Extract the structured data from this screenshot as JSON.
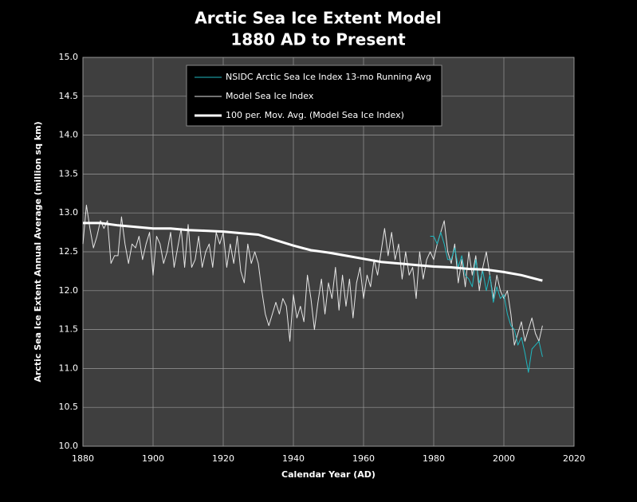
{
  "chart_data": {
    "type": "line",
    "title": "Arctic Sea Ice Extent Model",
    "subtitle": "1880 AD to Present",
    "xlabel": "Calendar Year (AD)",
    "ylabel": "Arctic Sea Ice Extent Annual Average (million sq km)",
    "xlim": [
      1880,
      2020
    ],
    "xticks": [
      1880,
      1900,
      1920,
      1940,
      1960,
      1980,
      2000,
      2020
    ],
    "ylim": [
      10,
      15
    ],
    "yticks": [
      {
        "value": 10,
        "label": "10.0"
      },
      10.5,
      {
        "value": 11,
        "label": "11.0"
      },
      11.5,
      {
        "value": 12,
        "label": "12.0"
      },
      12.5,
      {
        "value": 13,
        "label": "13.0"
      },
      13.5,
      {
        "value": 14,
        "label": "14.0"
      },
      14.5,
      {
        "value": 15,
        "label": "15.0"
      }
    ],
    "grid": true,
    "legend": "top",
    "series": [
      {
        "name": "NSIDC Arctic Sea Ice Index 13-mo Running Avg",
        "color": "#1fb8c0",
        "width": 1,
        "x": [
          1979,
          1980,
          1981,
          1982,
          1983,
          1984,
          1985,
          1986,
          1987,
          1988,
          1989,
          1990,
          1991,
          1992,
          1993,
          1994,
          1995,
          1996,
          1997,
          1998,
          1999,
          2000,
          2001,
          2002,
          2003,
          2004,
          2005,
          2006,
          2007,
          2008,
          2009,
          2010,
          2011
        ],
        "values": [
          12.7,
          12.7,
          12.6,
          12.75,
          12.6,
          12.4,
          12.4,
          12.55,
          12.3,
          12.45,
          12.2,
          12.15,
          12.05,
          12.4,
          12.1,
          12.25,
          12.0,
          12.2,
          11.85,
          12.05,
          11.9,
          11.95,
          11.7,
          11.55,
          11.5,
          11.3,
          11.4,
          11.2,
          10.95,
          11.25,
          11.3,
          11.35,
          11.15
        ]
      },
      {
        "name": "Model Sea Ice Index",
        "color": "#e6e6e6",
        "width": 1,
        "x": [
          1880,
          1881,
          1882,
          1883,
          1884,
          1885,
          1886,
          1887,
          1888,
          1889,
          1890,
          1891,
          1892,
          1893,
          1894,
          1895,
          1896,
          1897,
          1898,
          1899,
          1900,
          1901,
          1902,
          1903,
          1904,
          1905,
          1906,
          1907,
          1908,
          1909,
          1910,
          1911,
          1912,
          1913,
          1914,
          1915,
          1916,
          1917,
          1918,
          1919,
          1920,
          1921,
          1922,
          1923,
          1924,
          1925,
          1926,
          1927,
          1928,
          1929,
          1930,
          1931,
          1932,
          1933,
          1934,
          1935,
          1936,
          1937,
          1938,
          1939,
          1940,
          1941,
          1942,
          1943,
          1944,
          1945,
          1946,
          1947,
          1948,
          1949,
          1950,
          1951,
          1952,
          1953,
          1954,
          1955,
          1956,
          1957,
          1958,
          1959,
          1960,
          1961,
          1962,
          1963,
          1964,
          1965,
          1966,
          1967,
          1968,
          1969,
          1970,
          1971,
          1972,
          1973,
          1974,
          1975,
          1976,
          1977,
          1978,
          1979,
          1980,
          1981,
          1982,
          1983,
          1984,
          1985,
          1986,
          1987,
          1988,
          1989,
          1990,
          1991,
          1992,
          1993,
          1994,
          1995,
          1996,
          1997,
          1998,
          1999,
          2000,
          2001,
          2002,
          2003,
          2004,
          2005,
          2006,
          2007,
          2008,
          2009,
          2010,
          2011
        ],
        "values": [
          12.6,
          13.1,
          12.8,
          12.55,
          12.7,
          12.9,
          12.8,
          12.9,
          12.35,
          12.45,
          12.45,
          12.95,
          12.6,
          12.35,
          12.6,
          12.55,
          12.7,
          12.4,
          12.6,
          12.75,
          12.2,
          12.7,
          12.6,
          12.35,
          12.5,
          12.75,
          12.3,
          12.55,
          12.8,
          12.3,
          12.85,
          12.3,
          12.4,
          12.7,
          12.3,
          12.5,
          12.6,
          12.3,
          12.75,
          12.6,
          12.75,
          12.3,
          12.6,
          12.35,
          12.7,
          12.25,
          12.1,
          12.6,
          12.35,
          12.5,
          12.35,
          12.0,
          11.7,
          11.55,
          11.7,
          11.85,
          11.7,
          11.9,
          11.8,
          11.35,
          11.95,
          11.65,
          11.8,
          11.6,
          12.2,
          11.9,
          11.5,
          11.85,
          12.15,
          11.7,
          12.1,
          11.9,
          12.3,
          11.75,
          12.2,
          11.8,
          12.15,
          11.65,
          12.1,
          12.3,
          11.9,
          12.2,
          12.05,
          12.4,
          12.2,
          12.5,
          12.8,
          12.45,
          12.75,
          12.4,
          12.6,
          12.15,
          12.5,
          12.2,
          12.3,
          11.9,
          12.5,
          12.15,
          12.4,
          12.5,
          12.4,
          12.6,
          12.75,
          12.9,
          12.5,
          12.35,
          12.6,
          12.1,
          12.4,
          12.05,
          12.5,
          12.2,
          12.45,
          12.0,
          12.3,
          12.5,
          12.2,
          11.9,
          12.2,
          12.0,
          11.9,
          12.0,
          11.7,
          11.3,
          11.45,
          11.6,
          11.35,
          11.5,
          11.65,
          11.45,
          11.35,
          11.55
        ]
      },
      {
        "name": "100 per. Mov. Avg. (Model Sea Ice Index)",
        "color": "#ffffff",
        "width": 3,
        "x": [
          1880,
          1885,
          1890,
          1895,
          1900,
          1905,
          1910,
          1915,
          1920,
          1925,
          1930,
          1935,
          1940,
          1945,
          1950,
          1955,
          1960,
          1965,
          1970,
          1975,
          1980,
          1985,
          1990,
          1995,
          2000,
          2005,
          2010,
          2011
        ],
        "values": [
          12.87,
          12.87,
          12.84,
          12.82,
          12.8,
          12.8,
          12.78,
          12.77,
          12.76,
          12.74,
          12.72,
          12.65,
          12.58,
          12.52,
          12.49,
          12.45,
          12.41,
          12.37,
          12.35,
          12.33,
          12.31,
          12.3,
          12.28,
          12.27,
          12.24,
          12.2,
          12.14,
          12.13
        ]
      }
    ]
  }
}
